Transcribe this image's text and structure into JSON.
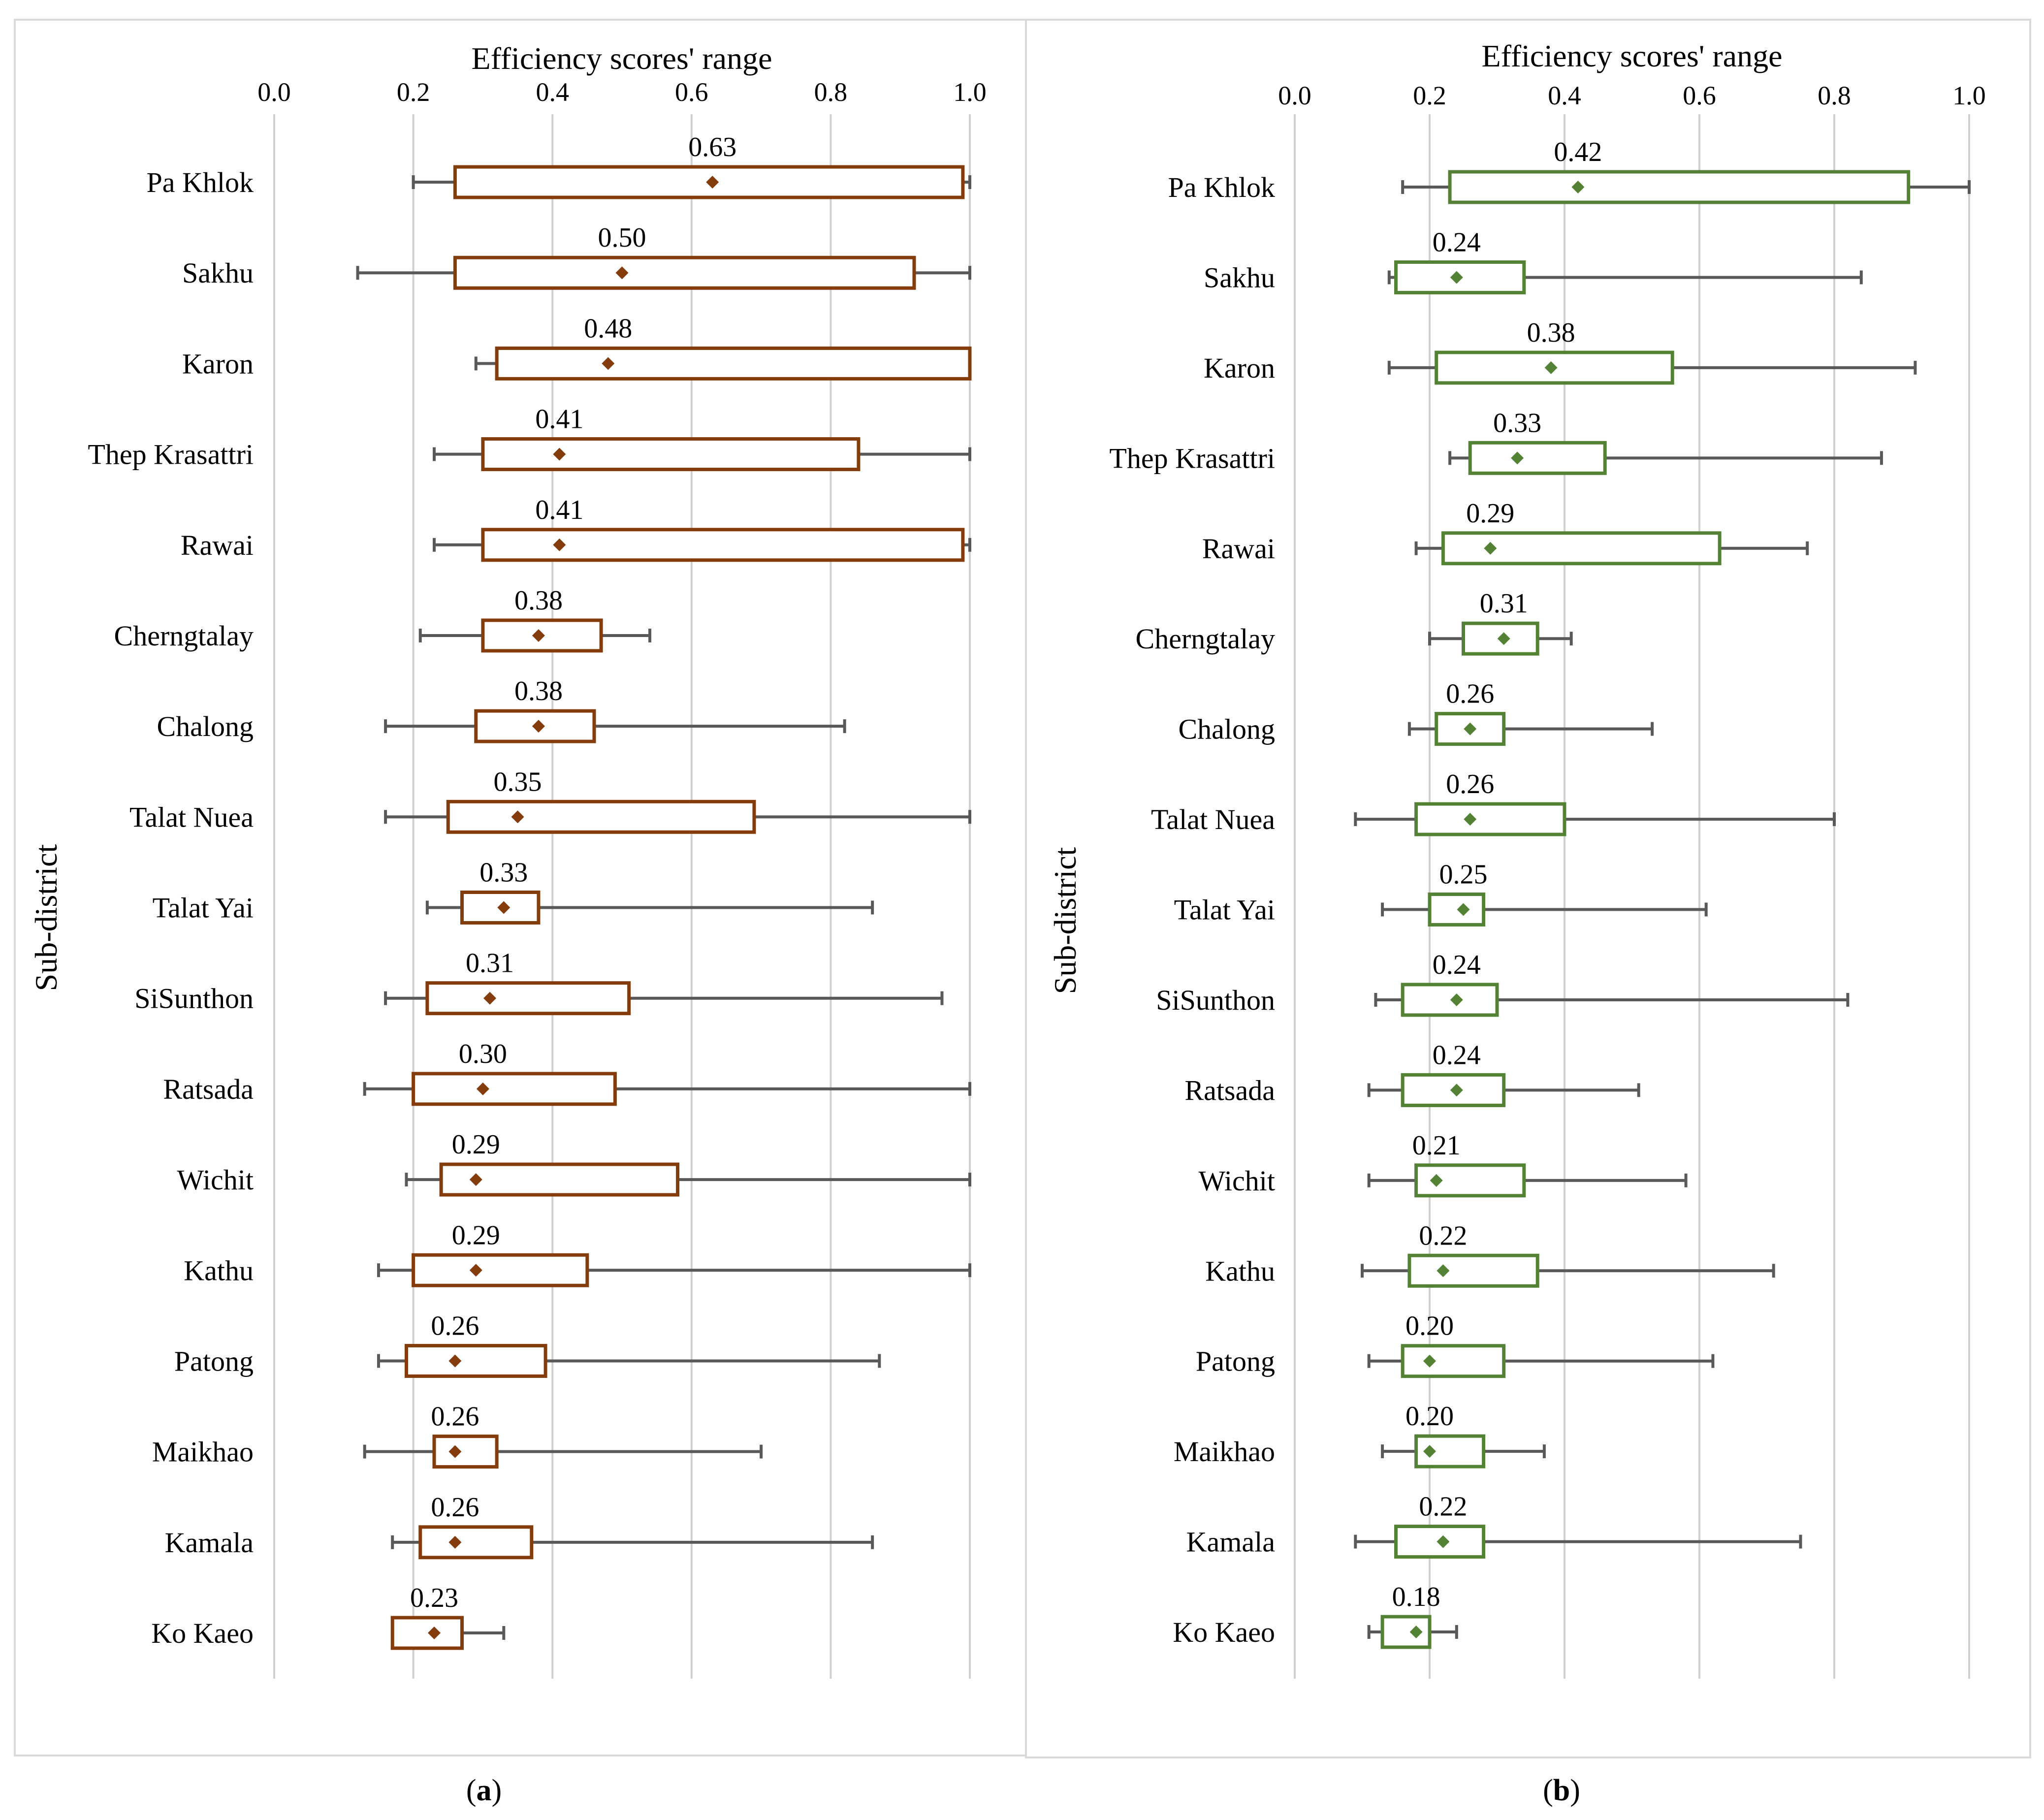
{
  "chart_data": [
    {
      "id": "a",
      "type": "box",
      "panel_label": "a",
      "title": "Efficiency scores' range",
      "xlabel": "Efficiency scores' range",
      "ylabel": "Sub-district",
      "xlim": [
        0,
        1.0
      ],
      "xticks": [
        "0.0",
        "0.2",
        "0.4",
        "0.6",
        "0.8",
        "1.0"
      ],
      "grid": true,
      "color": "#843c0c",
      "whisker_color": "#595959",
      "categories": [
        "Pa Khlok",
        "Sakhu",
        "Karon",
        "Thep Krasattri",
        "Rawai",
        "Cherngtalay",
        "Chalong",
        "Talat Nuea",
        "Talat Yai",
        "SiSunthon",
        "Ratsada",
        "Wichit",
        "Kathu",
        "Patong",
        "Maikhao",
        "Kamala",
        "Ko Kaeo"
      ],
      "series": [
        {
          "name": "Pa Khlok",
          "min": 0.2,
          "q1": 0.26,
          "mean": 0.63,
          "q3": 0.99,
          "max": 1.0,
          "label": "0.63"
        },
        {
          "name": "Sakhu",
          "min": 0.12,
          "q1": 0.26,
          "mean": 0.5,
          "q3": 0.92,
          "max": 1.0,
          "label": "0.50"
        },
        {
          "name": "Karon",
          "min": 0.29,
          "q1": 0.32,
          "mean": 0.48,
          "q3": 1.0,
          "max": 1.0,
          "label": "0.48"
        },
        {
          "name": "Thep Krasattri",
          "min": 0.23,
          "q1": 0.3,
          "mean": 0.41,
          "q3": 0.84,
          "max": 1.0,
          "label": "0.41"
        },
        {
          "name": "Rawai",
          "min": 0.23,
          "q1": 0.3,
          "mean": 0.41,
          "q3": 0.99,
          "max": 1.0,
          "label": "0.41"
        },
        {
          "name": "Cherngtalay",
          "min": 0.21,
          "q1": 0.3,
          "mean": 0.38,
          "q3": 0.47,
          "max": 0.54,
          "label": "0.38"
        },
        {
          "name": "Chalong",
          "min": 0.16,
          "q1": 0.29,
          "mean": 0.38,
          "q3": 0.46,
          "max": 0.82,
          "label": "0.38"
        },
        {
          "name": "Talat Nuea",
          "min": 0.16,
          "q1": 0.25,
          "mean": 0.35,
          "q3": 0.69,
          "max": 1.0,
          "label": "0.35"
        },
        {
          "name": "Talat Yai",
          "min": 0.22,
          "q1": 0.27,
          "mean": 0.33,
          "q3": 0.38,
          "max": 0.86,
          "label": "0.33"
        },
        {
          "name": "SiSunthon",
          "min": 0.16,
          "q1": 0.22,
          "mean": 0.31,
          "q3": 0.51,
          "max": 0.96,
          "label": "0.31"
        },
        {
          "name": "Ratsada",
          "min": 0.13,
          "q1": 0.2,
          "mean": 0.3,
          "q3": 0.49,
          "max": 1.0,
          "label": "0.30"
        },
        {
          "name": "Wichit",
          "min": 0.19,
          "q1": 0.24,
          "mean": 0.29,
          "q3": 0.58,
          "max": 1.0,
          "label": "0.29"
        },
        {
          "name": "Kathu",
          "min": 0.15,
          "q1": 0.2,
          "mean": 0.29,
          "q3": 0.45,
          "max": 1.0,
          "label": "0.29"
        },
        {
          "name": "Patong",
          "min": 0.15,
          "q1": 0.19,
          "mean": 0.26,
          "q3": 0.39,
          "max": 0.87,
          "label": "0.26"
        },
        {
          "name": "Maikhao",
          "min": 0.13,
          "q1": 0.23,
          "mean": 0.26,
          "q3": 0.32,
          "max": 0.7,
          "label": "0.26"
        },
        {
          "name": "Kamala",
          "min": 0.17,
          "q1": 0.21,
          "mean": 0.26,
          "q3": 0.37,
          "max": 0.86,
          "label": "0.26"
        },
        {
          "name": "Ko Kaeo",
          "min": 0.17,
          "q1": 0.17,
          "mean": 0.23,
          "q3": 0.27,
          "max": 0.33,
          "label": "0.23"
        }
      ]
    },
    {
      "id": "b",
      "type": "box",
      "panel_label": "b",
      "title": "Efficiency scores' range",
      "xlabel": "Efficiency scores' range",
      "ylabel": "Sub-district",
      "xlim": [
        0,
        1.0
      ],
      "xticks": [
        "0.0",
        "0.2",
        "0.4",
        "0.6",
        "0.8",
        "1.0"
      ],
      "grid": true,
      "color": "#548235",
      "whisker_color": "#595959",
      "categories": [
        "Pa Khlok",
        "Sakhu",
        "Karon",
        "Thep Krasattri",
        "Rawai",
        "Cherngtalay",
        "Chalong",
        "Talat Nuea",
        "Talat Yai",
        "SiSunthon",
        "Ratsada",
        "Wichit",
        "Kathu",
        "Patong",
        "Maikhao",
        "Kamala",
        "Ko Kaeo"
      ],
      "series": [
        {
          "name": "Pa Khlok",
          "min": 0.16,
          "q1": 0.23,
          "mean": 0.42,
          "q3": 0.91,
          "max": 1.0,
          "label": "0.42"
        },
        {
          "name": "Sakhu",
          "min": 0.14,
          "q1": 0.15,
          "mean": 0.24,
          "q3": 0.34,
          "max": 0.84,
          "label": "0.24"
        },
        {
          "name": "Karon",
          "min": 0.14,
          "q1": 0.21,
          "mean": 0.38,
          "q3": 0.56,
          "max": 0.92,
          "label": "0.38"
        },
        {
          "name": "Thep Krasattri",
          "min": 0.23,
          "q1": 0.26,
          "mean": 0.33,
          "q3": 0.46,
          "max": 0.87,
          "label": "0.33"
        },
        {
          "name": "Rawai",
          "min": 0.18,
          "q1": 0.22,
          "mean": 0.29,
          "q3": 0.63,
          "max": 0.76,
          "label": "0.29"
        },
        {
          "name": "Cherngtalay",
          "min": 0.2,
          "q1": 0.25,
          "mean": 0.31,
          "q3": 0.36,
          "max": 0.41,
          "label": "0.31"
        },
        {
          "name": "Chalong",
          "min": 0.17,
          "q1": 0.21,
          "mean": 0.26,
          "q3": 0.31,
          "max": 0.53,
          "label": "0.26"
        },
        {
          "name": "Talat Nuea",
          "min": 0.09,
          "q1": 0.18,
          "mean": 0.26,
          "q3": 0.4,
          "max": 0.8,
          "label": "0.26"
        },
        {
          "name": "Talat Yai",
          "min": 0.13,
          "q1": 0.2,
          "mean": 0.25,
          "q3": 0.28,
          "max": 0.61,
          "label": "0.25"
        },
        {
          "name": "SiSunthon",
          "min": 0.12,
          "q1": 0.16,
          "mean": 0.24,
          "q3": 0.3,
          "max": 0.82,
          "label": "0.24"
        },
        {
          "name": "Ratsada",
          "min": 0.11,
          "q1": 0.16,
          "mean": 0.24,
          "q3": 0.31,
          "max": 0.51,
          "label": "0.24"
        },
        {
          "name": "Wichit",
          "min": 0.11,
          "q1": 0.18,
          "mean": 0.21,
          "q3": 0.34,
          "max": 0.58,
          "label": "0.21"
        },
        {
          "name": "Kathu",
          "min": 0.1,
          "q1": 0.17,
          "mean": 0.22,
          "q3": 0.36,
          "max": 0.71,
          "label": "0.22"
        },
        {
          "name": "Patong",
          "min": 0.11,
          "q1": 0.16,
          "mean": 0.2,
          "q3": 0.31,
          "max": 0.62,
          "label": "0.20"
        },
        {
          "name": "Maikhao",
          "min": 0.13,
          "q1": 0.18,
          "mean": 0.2,
          "q3": 0.28,
          "max": 0.37,
          "label": "0.20"
        },
        {
          "name": "Kamala",
          "min": 0.09,
          "q1": 0.15,
          "mean": 0.22,
          "q3": 0.28,
          "max": 0.75,
          "label": "0.22"
        },
        {
          "name": "Ko Kaeo",
          "min": 0.11,
          "q1": 0.13,
          "mean": 0.18,
          "q3": 0.2,
          "max": 0.24,
          "label": "0.18"
        }
      ]
    }
  ]
}
